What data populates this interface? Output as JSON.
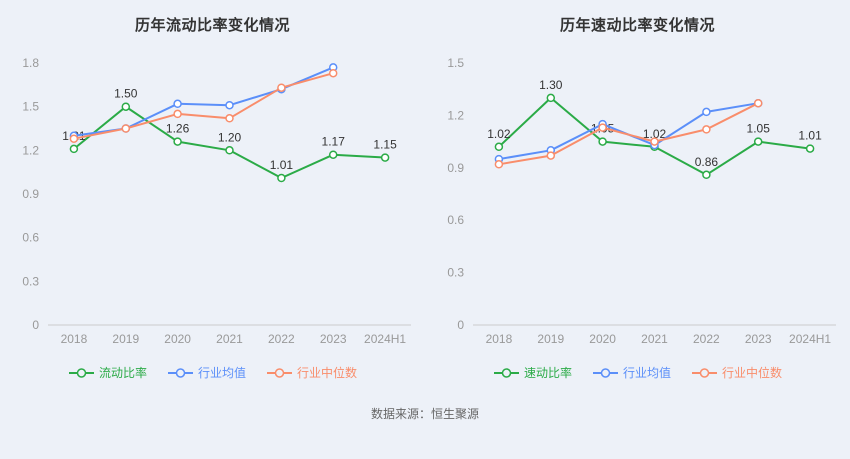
{
  "page": {
    "background": "#edf1f8",
    "source_note": "数据来源：恒生聚源"
  },
  "colors": {
    "green": "#2bab47",
    "blue": "#5b8ff9",
    "orange": "#f98d6b",
    "axis_text": "#999999",
    "axis_line": "#cccccc",
    "label_text": "#333333",
    "title_text": "#333333"
  },
  "chart_data": [
    {
      "type": "line",
      "title": "历年流动比率变化情况",
      "categories": [
        "2018",
        "2019",
        "2020",
        "2021",
        "2022",
        "2023",
        "2024H1"
      ],
      "ylim": [
        0,
        1.8
      ],
      "yticks": [
        0,
        0.3,
        0.6,
        0.9,
        1.2,
        1.5,
        1.8
      ],
      "grid": false,
      "legend_position": "bottom",
      "series": [
        {
          "name": "流动比率",
          "color": "#2bab47",
          "values": [
            1.21,
            1.5,
            1.26,
            1.2,
            1.01,
            1.17,
            1.15
          ],
          "labels": [
            "1.21",
            "1.50",
            "1.26",
            "1.20",
            "1.01",
            "1.17",
            "1.15"
          ]
        },
        {
          "name": "行业均值",
          "color": "#5b8ff9",
          "values": [
            1.3,
            1.35,
            1.52,
            1.51,
            1.62,
            1.77,
            null
          ]
        },
        {
          "name": "行业中位数",
          "color": "#f98d6b",
          "values": [
            1.28,
            1.35,
            1.45,
            1.42,
            1.63,
            1.73,
            null
          ]
        }
      ]
    },
    {
      "type": "line",
      "title": "历年速动比率变化情况",
      "categories": [
        "2018",
        "2019",
        "2020",
        "2021",
        "2022",
        "2023",
        "2024H1"
      ],
      "ylim": [
        0,
        1.5
      ],
      "yticks": [
        0,
        0.3,
        0.6,
        0.9,
        1.2,
        1.5
      ],
      "grid": false,
      "legend_position": "bottom",
      "series": [
        {
          "name": "速动比率",
          "color": "#2bab47",
          "values": [
            1.02,
            1.3,
            1.05,
            1.02,
            0.86,
            1.05,
            1.01
          ],
          "labels": [
            "1.02",
            "1.30",
            "1.05",
            "1.02",
            "0.86",
            "1.05",
            "1.01"
          ]
        },
        {
          "name": "行业均值",
          "color": "#5b8ff9",
          "values": [
            0.95,
            1.0,
            1.15,
            1.03,
            1.22,
            1.27,
            null
          ]
        },
        {
          "name": "行业中位数",
          "color": "#f98d6b",
          "values": [
            0.92,
            0.97,
            1.13,
            1.05,
            1.12,
            1.27,
            null
          ]
        }
      ]
    }
  ]
}
